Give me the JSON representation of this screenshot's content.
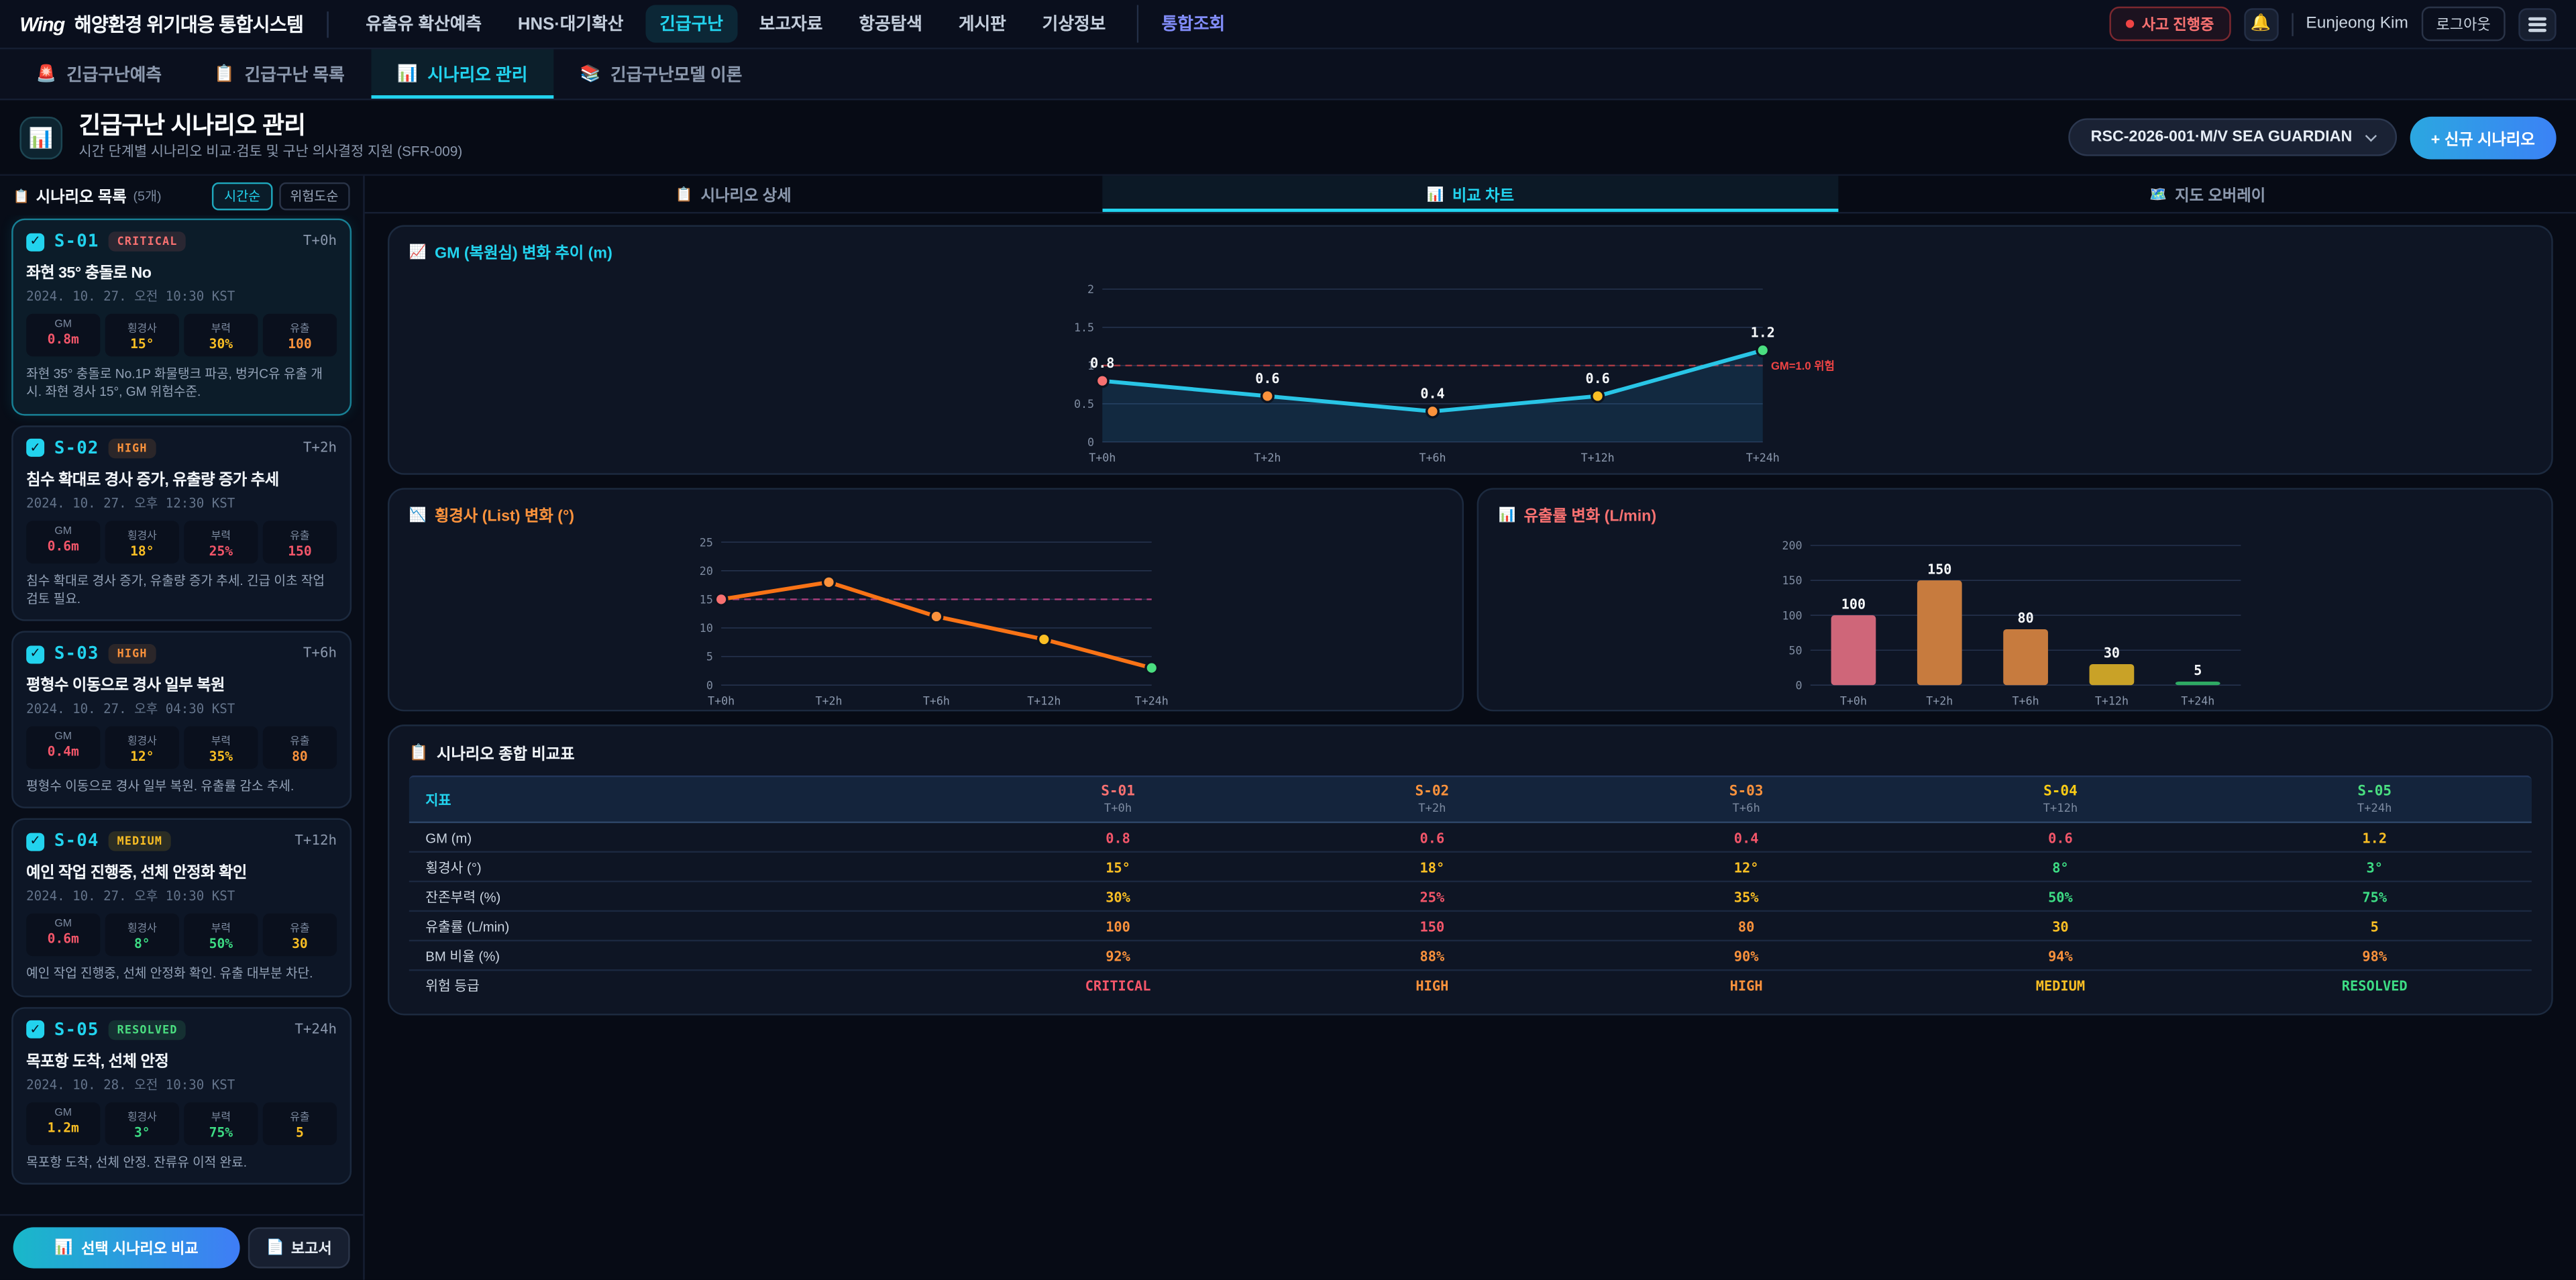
{
  "topnav": {
    "logo": "Wing",
    "brand": "해양환경 위기대응 통합시스템",
    "items": [
      {
        "label": "유출유 확산예측",
        "active": false,
        "accent": false
      },
      {
        "label": "HNS·대기확산",
        "active": false,
        "accent": false
      },
      {
        "label": "긴급구난",
        "active": true,
        "accent": false
      },
      {
        "label": "보고자료",
        "active": false,
        "accent": false
      },
      {
        "label": "항공탐색",
        "active": false,
        "accent": false
      },
      {
        "label": "게시판",
        "active": false,
        "accent": false
      },
      {
        "label": "기상정보",
        "active": false,
        "accent": false
      },
      {
        "label": "통합조회",
        "active": false,
        "accent": true
      }
    ],
    "status_badge": "사고 진행중",
    "bell_icon": "🔔",
    "user_name": "Eunjeong Kim",
    "logout_label": "로그아웃"
  },
  "tabs": [
    {
      "icon": "🚨",
      "label": "긴급구난예측",
      "active": false
    },
    {
      "icon": "📋",
      "label": "긴급구난 목록",
      "active": false
    },
    {
      "icon": "📊",
      "label": "시나리오 관리",
      "active": true
    },
    {
      "icon": "📚",
      "label": "긴급구난모델 이론",
      "active": false
    }
  ],
  "header": {
    "icon": "📊",
    "title": "긴급구난 시나리오 관리",
    "subtitle": "시간 단계별 시나리오 비교·검토 및 구난 의사결정 지원 (SFR-009)",
    "incident_select": "RSC-2026-001·M/V SEA GUARDIAN",
    "new_scenario_label": "+ 신규 시나리오"
  },
  "sidebar": {
    "icon": "📋",
    "title": "시나리오 목록",
    "count": "(5개)",
    "sort_buttons": [
      {
        "label": "시간순",
        "active": true
      },
      {
        "label": "위험도순",
        "active": false
      }
    ],
    "stat_labels": [
      "GM",
      "횡경사",
      "부력",
      "유출"
    ],
    "scenarios": [
      {
        "id": "S-01",
        "severity": "CRITICAL",
        "time": "T+0h",
        "title": "좌현 35° 충돌로 No",
        "datetime": "2024. 10. 27. 오전 10:30 KST",
        "stats": [
          {
            "v": "0.8m",
            "c": "red"
          },
          {
            "v": "15°",
            "c": "yellow"
          },
          {
            "v": "30%",
            "c": "yellow"
          },
          {
            "v": "100",
            "c": "orange"
          }
        ],
        "desc": "좌현 35° 충돌로 No.1P 화물탱크 파공, 벙커C유 유출 개시. 좌현 경사 15°, GM 위험수준.",
        "selected": true,
        "checked": true
      },
      {
        "id": "S-02",
        "severity": "HIGH",
        "time": "T+2h",
        "title": "침수 확대로 경사 증가, 유출량 증가 추세",
        "datetime": "2024. 10. 27. 오후 12:30 KST",
        "stats": [
          {
            "v": "0.6m",
            "c": "red"
          },
          {
            "v": "18°",
            "c": "yellow"
          },
          {
            "v": "25%",
            "c": "red"
          },
          {
            "v": "150",
            "c": "red"
          }
        ],
        "desc": "침수 확대로 경사 증가, 유출량 증가 추세. 긴급 이초 작업 검토 필요.",
        "selected": false,
        "checked": true
      },
      {
        "id": "S-03",
        "severity": "HIGH",
        "time": "T+6h",
        "title": "평형수 이동으로 경사 일부 복원",
        "datetime": "2024. 10. 27. 오후 04:30 KST",
        "stats": [
          {
            "v": "0.4m",
            "c": "red"
          },
          {
            "v": "12°",
            "c": "yellow"
          },
          {
            "v": "35%",
            "c": "yellow"
          },
          {
            "v": "80",
            "c": "orange"
          }
        ],
        "desc": "평형수 이동으로 경사 일부 복원. 유출률 감소 추세.",
        "selected": false,
        "checked": true
      },
      {
        "id": "S-04",
        "severity": "MEDIUM",
        "time": "T+12h",
        "title": "예인 작업 진행중, 선체 안정화 확인",
        "datetime": "2024. 10. 27. 오후 10:30 KST",
        "stats": [
          {
            "v": "0.6m",
            "c": "red"
          },
          {
            "v": "8°",
            "c": "green"
          },
          {
            "v": "50%",
            "c": "green"
          },
          {
            "v": "30",
            "c": "yellow"
          }
        ],
        "desc": "예인 작업 진행중, 선체 안정화 확인. 유출 대부분 차단.",
        "selected": false,
        "checked": true
      },
      {
        "id": "S-05",
        "severity": "RESOLVED",
        "time": "T+24h",
        "title": "목포항 도착, 선체 안정",
        "datetime": "2024. 10. 28. 오전 10:30 KST",
        "stats": [
          {
            "v": "1.2m",
            "c": "yellow"
          },
          {
            "v": "3°",
            "c": "green"
          },
          {
            "v": "75%",
            "c": "green"
          },
          {
            "v": "5",
            "c": "yellow"
          }
        ],
        "desc": "목포항 도착, 선체 안정. 잔류유 이적 완료.",
        "selected": false,
        "checked": true
      }
    ],
    "compare_button": {
      "icon": "📊",
      "label": "선택 시나리오 비교"
    },
    "report_button": {
      "icon": "📄",
      "label": "보고서"
    }
  },
  "main_tabs": [
    {
      "icon": "📋",
      "label": "시나리오 상세",
      "active": false
    },
    {
      "icon": "📊",
      "label": "비교 차트",
      "active": true
    },
    {
      "icon": "🗺️",
      "label": "지도 오버레이",
      "active": false
    }
  ],
  "chart_data": [
    {
      "type": "line",
      "title": "GM (복원심) 변화 추이 (m)",
      "title_icon": "📈",
      "title_color": "#22d3ee",
      "categories": [
        "T+0h",
        "T+2h",
        "T+6h",
        "T+12h",
        "T+24h"
      ],
      "values": [
        0.8,
        0.6,
        0.4,
        0.6,
        1.2
      ],
      "ylim": [
        0,
        2
      ],
      "yticks": [
        0,
        0.5,
        1,
        1.5,
        2
      ],
      "line_color": "#29c5e6",
      "area": true,
      "point_colors": [
        "#f87171",
        "#fb923c",
        "#fb923c",
        "#fbbf24",
        "#4ade80"
      ],
      "threshold": {
        "value": 1.0,
        "label": "GM=1.0 위험",
        "color": "#ef4444"
      },
      "data_labels": true,
      "grid": true,
      "legend": "none"
    },
    {
      "type": "line",
      "title": "횡경사 (List) 변화 (°)",
      "title_icon": "📉",
      "title_color": "#fb923c",
      "categories": [
        "T+0h",
        "T+2h",
        "T+6h",
        "T+12h",
        "T+24h"
      ],
      "values": [
        15,
        18,
        12,
        8,
        3
      ],
      "ylim": [
        0,
        25
      ],
      "yticks": [
        0,
        5,
        10,
        15,
        20,
        25
      ],
      "line_color": "#f97316",
      "area": false,
      "point_colors": [
        "#f87171",
        "#fb923c",
        "#fb923c",
        "#fbbf24",
        "#4ade80"
      ],
      "threshold": {
        "value": 15,
        "label": "",
        "color": "#ec4899"
      },
      "data_labels": false,
      "grid": true,
      "legend": "none"
    },
    {
      "type": "bar",
      "title": "유출률 변화 (L/min)",
      "title_icon": "📊",
      "title_color": "#f87171",
      "categories": [
        "T+0h",
        "T+2h",
        "T+6h",
        "T+12h",
        "T+24h"
      ],
      "values": [
        100,
        150,
        80,
        30,
        5
      ],
      "ylim": [
        0,
        200
      ],
      "yticks": [
        0,
        50,
        100,
        150,
        200
      ],
      "bar_colors": [
        "#cf6679",
        "#c77b3e",
        "#c77b3e",
        "#c9a227",
        "#2eaa63"
      ],
      "data_labels": true,
      "grid": true,
      "legend": "none"
    }
  ],
  "table": {
    "icon": "📋",
    "title": "시나리오 종합 비교표",
    "metric_header": "지표",
    "columns": [
      {
        "id": "S-01",
        "time": "T+0h",
        "color": "#f87171"
      },
      {
        "id": "S-02",
        "time": "T+2h",
        "color": "#fb923c"
      },
      {
        "id": "S-03",
        "time": "T+6h",
        "color": "#fb923c"
      },
      {
        "id": "S-04",
        "time": "T+12h",
        "color": "#facc15"
      },
      {
        "id": "S-05",
        "time": "T+24h",
        "color": "#4ade80"
      }
    ],
    "rows": [
      {
        "metric": "GM (m)",
        "values": [
          {
            "v": "0.8",
            "c": "red"
          },
          {
            "v": "0.6",
            "c": "red"
          },
          {
            "v": "0.4",
            "c": "red"
          },
          {
            "v": "0.6",
            "c": "red"
          },
          {
            "v": "1.2",
            "c": "yellow"
          }
        ]
      },
      {
        "metric": "횡경사 (°)",
        "values": [
          {
            "v": "15°",
            "c": "yellow"
          },
          {
            "v": "18°",
            "c": "yellow"
          },
          {
            "v": "12°",
            "c": "yellow"
          },
          {
            "v": "8°",
            "c": "green"
          },
          {
            "v": "3°",
            "c": "green"
          }
        ]
      },
      {
        "metric": "잔존부력 (%)",
        "values": [
          {
            "v": "30%",
            "c": "yellow"
          },
          {
            "v": "25%",
            "c": "red"
          },
          {
            "v": "35%",
            "c": "yellow"
          },
          {
            "v": "50%",
            "c": "green"
          },
          {
            "v": "75%",
            "c": "green"
          }
        ]
      },
      {
        "metric": "유출률 (L/min)",
        "values": [
          {
            "v": "100",
            "c": "orange"
          },
          {
            "v": "150",
            "c": "red"
          },
          {
            "v": "80",
            "c": "orange"
          },
          {
            "v": "30",
            "c": "yellow"
          },
          {
            "v": "5",
            "c": "yellow"
          }
        ]
      },
      {
        "metric": "BM 비율 (%)",
        "values": [
          {
            "v": "92%",
            "c": "orange"
          },
          {
            "v": "88%",
            "c": "orange"
          },
          {
            "v": "90%",
            "c": "orange"
          },
          {
            "v": "94%",
            "c": "orange"
          },
          {
            "v": "98%",
            "c": "orange"
          }
        ]
      },
      {
        "metric": "위험 등급",
        "values": [
          {
            "v": "CRITICAL",
            "c": "red"
          },
          {
            "v": "HIGH",
            "c": "orange"
          },
          {
            "v": "HIGH",
            "c": "orange"
          },
          {
            "v": "MEDIUM",
            "c": "yellow"
          },
          {
            "v": "RESOLVED",
            "c": "green"
          }
        ]
      }
    ]
  }
}
